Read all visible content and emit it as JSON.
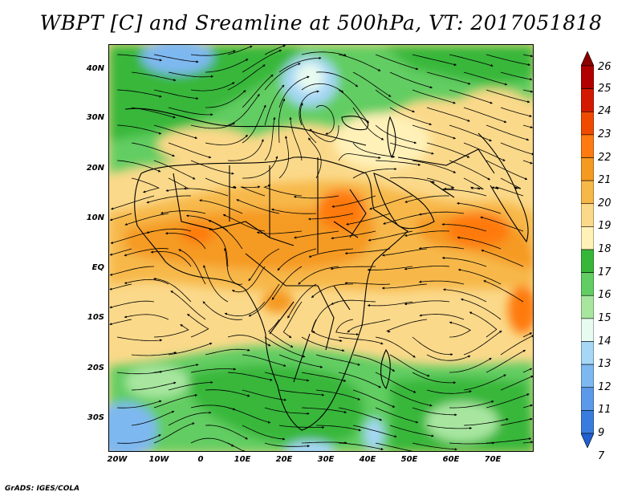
{
  "title": "WBPT [C] and Sreamline at 500hPa, VT: 2017051818",
  "latitude_labels": [
    "40N",
    "30N",
    "20N",
    "10N",
    "EQ",
    "10S",
    "20S",
    "30S"
  ],
  "longitude_labels": [
    "20W",
    "10W",
    "0",
    "10E",
    "20E",
    "30E",
    "40E",
    "50E",
    "60E",
    "70E"
  ],
  "colorbar": {
    "labels": [
      "26",
      "25",
      "24",
      "23",
      "22",
      "21",
      "20",
      "19",
      "18",
      "17",
      "16",
      "15",
      "14",
      "13",
      "12",
      "11",
      "9",
      "7"
    ],
    "colors": [
      "#8b0000",
      "#b00000",
      "#d31a00",
      "#ee4a00",
      "#ff7a10",
      "#f59a20",
      "#f7b84a",
      "#fbd98a",
      "#fff1b8",
      "#37b73a",
      "#62cd62",
      "#a8e6a0",
      "#e8fbf0",
      "#a6d7f5",
      "#7eb8f0",
      "#5a9ae8",
      "#3a7cde",
      "#1f5fd0"
    ]
  },
  "credit": "GrADS: IGES/COLA"
}
